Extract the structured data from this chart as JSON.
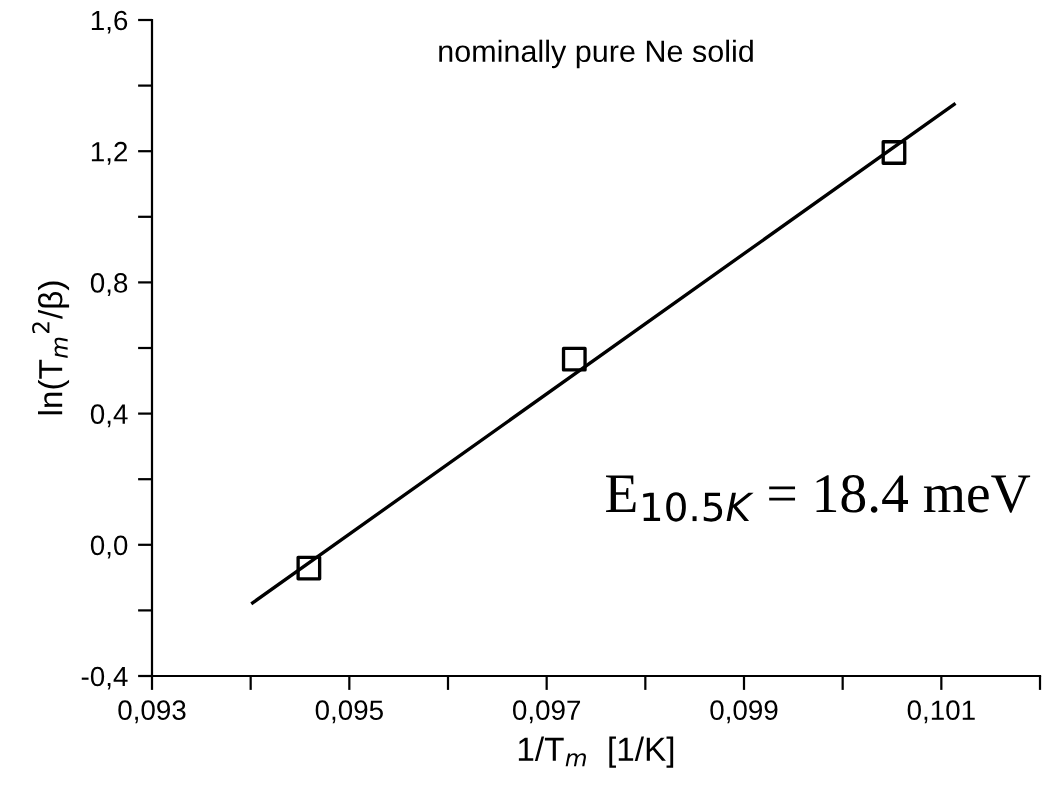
{
  "chart_data": {
    "type": "scatter",
    "title": "nominally pure Ne solid",
    "xlabel": "1/T$_{m}$  [1/K]",
    "ylabel": "ln(T$_{m}$$^{2}$/β)",
    "annotations": [
      "E$_{10.5K}$ = 18.4 meV"
    ],
    "series": [
      {
        "color": "#000000",
        "marker": "square",
        "x": [
          0.09459,
          0.09728,
          0.10052
        ],
        "values": [
          -0.071,
          0.566,
          1.196
        ]
      },
      {
        "type": "line",
        "color": "#000000",
        "marker": "none",
        "x": [
          0.09402,
          0.10113
        ],
        "values": [
          -0.177,
          1.343
        ]
      }
    ],
    "xlim": [
      0.093,
      0.102
    ],
    "ylim": [
      -0.4,
      1.6
    ],
    "xticks": [
      {
        "value": 0.093,
        "label": "0,093"
      },
      {
        "value": 0.094,
        "label": null
      },
      {
        "value": 0.095,
        "label": "0,095"
      },
      {
        "value": 0.096,
        "label": null
      },
      {
        "value": 0.097,
        "label": "0,097"
      },
      {
        "value": 0.098,
        "label": null
      },
      {
        "value": 0.099,
        "label": "0,099"
      },
      {
        "value": 0.1,
        "label": null
      },
      {
        "value": 0.101,
        "label": "0,101"
      },
      {
        "value": 0.102,
        "label": null
      }
    ],
    "yticks": [
      {
        "value": -0.4,
        "label": "-0,4"
      },
      {
        "value": -0.2,
        "label": null
      },
      {
        "value": 0.0,
        "label": "0,0"
      },
      {
        "value": 0.2,
        "label": null
      },
      {
        "value": 0.4,
        "label": "0,4"
      },
      {
        "value": 0.6,
        "label": null
      },
      {
        "value": 0.8,
        "label": "0,8"
      },
      {
        "value": 1.0,
        "label": null
      },
      {
        "value": 1.2,
        "label": "1,2"
      },
      {
        "value": 1.4,
        "label": null
      },
      {
        "value": 1.6,
        "label": "1,6"
      }
    ],
    "grid": false,
    "legend": false
  }
}
